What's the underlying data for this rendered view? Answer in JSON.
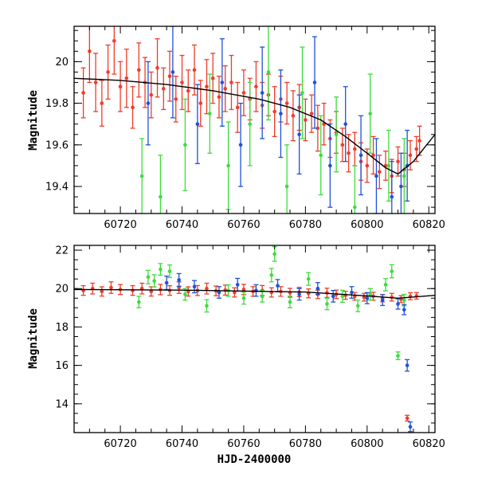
{
  "colors": {
    "red": "#f03c28",
    "green": "#3ddc3d",
    "blue": "#1f52d9",
    "model": "#000000",
    "frame": "#000000"
  },
  "chart_data": [
    {
      "type": "scatter",
      "panel": "top",
      "title": "",
      "xlabel": "",
      "ylabel": "Magnitude",
      "xlim": [
        60705,
        60822
      ],
      "ylim": [
        20.17,
        19.27
      ],
      "y_inverted": true,
      "x_ticks": [
        60720,
        60740,
        60760,
        60780,
        60800,
        60820
      ],
      "y_ticks": [
        19.4,
        19.6,
        19.8,
        20
      ],
      "y_tick_labels": [
        "19.4",
        "19.6",
        "19.8",
        "20"
      ],
      "model_curve": {
        "x": [
          60705,
          60720,
          60735,
          60750,
          60765,
          60775,
          60785,
          60793,
          60800,
          60806,
          60810,
          60815,
          60822
        ],
        "y": [
          19.92,
          19.91,
          19.89,
          19.86,
          19.82,
          19.78,
          19.72,
          19.64,
          19.56,
          19.49,
          19.46,
          19.52,
          19.65
        ]
      },
      "series": [
        {
          "color_key": "red",
          "x": [
            60708,
            60710,
            60712,
            60714,
            60716,
            60718,
            60720,
            60722,
            60724,
            60726,
            60728,
            60730,
            60732,
            60734,
            60736,
            60738,
            60740,
            60742,
            60744,
            60746,
            60748,
            60750,
            60752,
            60754,
            60756,
            60758,
            60760,
            60762,
            60764,
            60766,
            60768,
            60770,
            60772,
            60774,
            60776,
            60778,
            60780,
            60782,
            60784,
            60786,
            60788,
            60790,
            60792,
            60794,
            60796,
            60798,
            60800,
            60802,
            60804,
            60806,
            60808,
            60810,
            60812,
            60814,
            60816,
            60817
          ],
          "y": [
            19.85,
            20.05,
            19.9,
            19.8,
            19.95,
            20.1,
            19.88,
            19.92,
            19.78,
            19.96,
            19.9,
            19.84,
            19.97,
            19.87,
            19.93,
            19.82,
            19.9,
            19.86,
            19.96,
            19.8,
            19.88,
            19.92,
            19.83,
            19.87,
            19.9,
            19.78,
            19.85,
            19.82,
            19.88,
            19.79,
            19.84,
            19.76,
            19.82,
            19.8,
            19.74,
            19.78,
            19.72,
            19.75,
            19.68,
            19.7,
            19.63,
            19.66,
            19.6,
            19.56,
            19.58,
            19.52,
            19.5,
            19.55,
            19.47,
            19.5,
            19.45,
            19.52,
            19.48,
            19.55,
            19.58,
            19.62
          ],
          "err": [
            0.12,
            0.15,
            0.14,
            0.11,
            0.13,
            0.16,
            0.12,
            0.14,
            0.1,
            0.13,
            0.12,
            0.11,
            0.14,
            0.1,
            0.12,
            0.11,
            0.13,
            0.1,
            0.12,
            0.11,
            0.13,
            0.12,
            0.1,
            0.11,
            0.13,
            0.12,
            0.11,
            0.1,
            0.12,
            0.11,
            0.1,
            0.12,
            0.11,
            0.1,
            0.12,
            0.11,
            0.1,
            0.09,
            0.11,
            0.1,
            0.09,
            0.1,
            0.08,
            0.09,
            0.08,
            0.09,
            0.08,
            0.09,
            0.08,
            0.07,
            0.08,
            0.07,
            0.08,
            0.07,
            0.06,
            0.07
          ]
        },
        {
          "color_key": "green",
          "x": [
            60727,
            60733,
            60741,
            60749,
            60755,
            60762,
            60768,
            60774,
            60779,
            60785,
            60790,
            60796,
            60801,
            60807,
            60812
          ],
          "y": [
            19.45,
            19.35,
            19.6,
            19.75,
            19.5,
            19.7,
            19.95,
            19.4,
            19.85,
            19.55,
            19.65,
            19.3,
            19.75,
            19.5,
            19.45
          ],
          "err": [
            0.18,
            0.2,
            0.22,
            0.19,
            0.21,
            0.2,
            0.23,
            0.2,
            0.22,
            0.19,
            0.18,
            0.2,
            0.19,
            0.17,
            0.18
          ]
        },
        {
          "color_key": "blue",
          "x": [
            60729,
            60737,
            60745,
            60753,
            60759,
            60766,
            60772,
            60778,
            60783,
            60788,
            60793,
            60798,
            60803,
            60808,
            60811,
            60813
          ],
          "y": [
            19.8,
            19.95,
            19.7,
            19.9,
            19.6,
            19.85,
            19.75,
            19.65,
            19.9,
            19.5,
            19.7,
            19.55,
            19.45,
            19.35,
            19.4,
            19.5
          ],
          "err": [
            0.2,
            0.22,
            0.19,
            0.21,
            0.2,
            0.22,
            0.21,
            0.19,
            0.22,
            0.2,
            0.18,
            0.19,
            0.18,
            0.17,
            0.16,
            0.17
          ]
        }
      ]
    },
    {
      "type": "scatter",
      "panel": "bottom",
      "title": "",
      "xlabel": "HJD-2400000",
      "ylabel": "Magnitude",
      "xlim": [
        60705,
        60822
      ],
      "ylim": [
        22.25,
        12.5
      ],
      "y_inverted": true,
      "x_ticks": [
        60720,
        60740,
        60760,
        60780,
        60800,
        60820
      ],
      "y_ticks": [
        14,
        16,
        18,
        20,
        22
      ],
      "y_tick_labels": [
        "14",
        "16",
        "18",
        "20",
        "22"
      ],
      "model_curve": {
        "x": [
          60705,
          60740,
          60780,
          60800,
          60810,
          60822
        ],
        "y": [
          19.95,
          19.92,
          19.82,
          19.62,
          19.5,
          19.65
        ]
      },
      "series": [
        {
          "color_key": "red",
          "x": [
            60708,
            60711,
            60714,
            60717,
            60720,
            60724,
            60727,
            60730,
            60733,
            60736,
            60739,
            60742,
            60745,
            60748,
            60751,
            60754,
            60757,
            60760,
            60763,
            60766,
            60769,
            60772,
            60775,
            60778,
            60781,
            60784,
            60787,
            60790,
            60793,
            60796,
            60799,
            60802,
            60805,
            60808,
            60811,
            60813,
            60814,
            60816
          ],
          "y": [
            19.9,
            20.0,
            19.85,
            20.05,
            19.95,
            19.9,
            20.0,
            19.85,
            19.95,
            19.9,
            20.05,
            19.85,
            19.9,
            20.0,
            19.88,
            19.92,
            19.8,
            19.95,
            19.85,
            19.9,
            19.8,
            19.85,
            19.78,
            19.82,
            19.75,
            19.7,
            19.78,
            19.7,
            19.65,
            19.6,
            19.55,
            19.6,
            19.5,
            19.55,
            19.45,
            13.25,
            19.6,
            19.62
          ],
          "err": [
            0.25,
            0.28,
            0.24,
            0.3,
            0.26,
            0.25,
            0.28,
            0.24,
            0.27,
            0.25,
            0.3,
            0.24,
            0.26,
            0.28,
            0.25,
            0.26,
            0.24,
            0.27,
            0.25,
            0.26,
            0.24,
            0.25,
            0.23,
            0.24,
            0.23,
            0.22,
            0.24,
            0.22,
            0.21,
            0.2,
            0.2,
            0.21,
            0.19,
            0.2,
            0.18,
            0.15,
            0.18,
            0.17
          ]
        },
        {
          "color_key": "green",
          "x": [
            60726,
            60729,
            60731,
            60733,
            60736,
            60741,
            60748,
            60755,
            60760,
            60766,
            60769,
            60770,
            60775,
            60781,
            60787,
            60792,
            60797,
            60801,
            60806,
            60808,
            60810,
            60812
          ],
          "y": [
            19.3,
            20.6,
            20.4,
            21.0,
            20.9,
            19.7,
            19.1,
            19.9,
            19.5,
            19.6,
            20.7,
            21.8,
            19.3,
            20.5,
            19.2,
            19.6,
            19.1,
            19.7,
            20.2,
            20.9,
            16.5,
            19.4
          ],
          "err": [
            0.3,
            0.35,
            0.32,
            0.3,
            0.33,
            0.3,
            0.32,
            0.3,
            0.31,
            0.3,
            0.35,
            0.38,
            0.3,
            0.33,
            0.3,
            0.31,
            0.3,
            0.3,
            0.32,
            0.34,
            0.2,
            0.3
          ]
        },
        {
          "color_key": "blue",
          "x": [
            60735,
            60739,
            60744,
            60752,
            60758,
            60764,
            60771,
            60778,
            60784,
            60789,
            60795,
            60800,
            60805,
            60810,
            60812,
            60813,
            60814
          ],
          "y": [
            20.3,
            20.45,
            20.1,
            19.8,
            20.2,
            19.9,
            20.15,
            19.7,
            20.0,
            19.6,
            19.8,
            19.5,
            19.4,
            19.2,
            18.9,
            16.0,
            12.8
          ],
          "err": [
            0.35,
            0.33,
            0.32,
            0.3,
            0.33,
            0.3,
            0.32,
            0.3,
            0.31,
            0.3,
            0.3,
            0.29,
            0.28,
            0.27,
            0.26,
            0.3,
            0.25
          ]
        }
      ]
    }
  ]
}
